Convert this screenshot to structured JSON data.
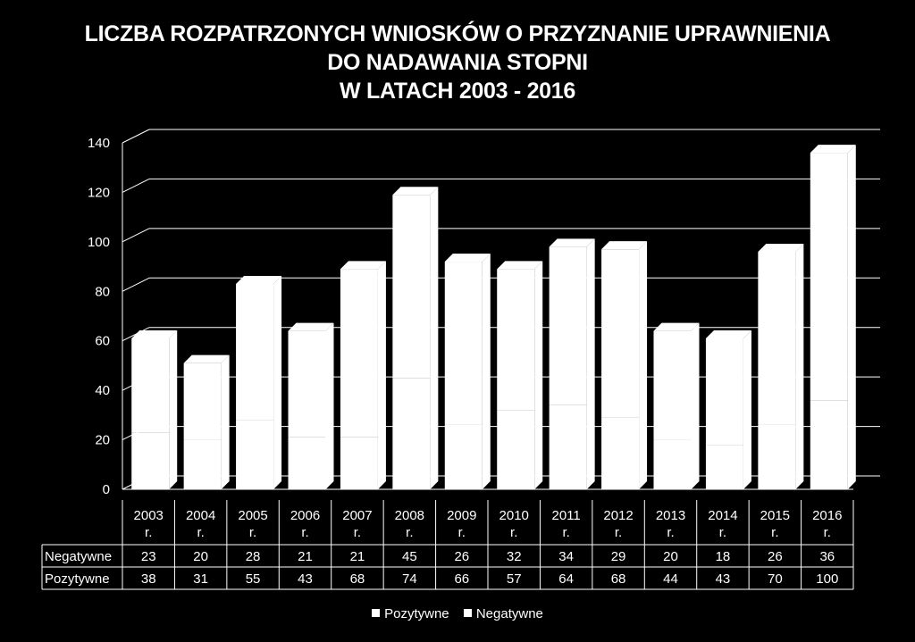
{
  "title_lines": [
    "LICZBA ROZPATRZONYCH WNIOSKÓW O PRZYZNANIE UPRAWNIENIA",
    "DO NADAWANIA STOPNI",
    "W LATACH 2003 - 2016"
  ],
  "chart_data": {
    "type": "bar",
    "stacked": true,
    "title": "LICZBA ROZPATRZONYCH WNIOSKÓW O PRZYZNANIE UPRAWNIENIA DO NADAWANIA STOPNI W LATACH 2003 - 2016",
    "categories": [
      "2003 r.",
      "2004 r.",
      "2005 r.",
      "2006 r.",
      "2007 r.",
      "2008 r.",
      "2009 r.",
      "2010 r.",
      "2011 r.",
      "2012 r.",
      "2013 r.",
      "2014 r.",
      "2015 r.",
      "2016 r."
    ],
    "series": [
      {
        "name": "Negatywne",
        "values": [
          23,
          20,
          28,
          21,
          21,
          45,
          26,
          32,
          34,
          29,
          20,
          18,
          26,
          36
        ],
        "color": "#ffffff"
      },
      {
        "name": "Pozytywne",
        "values": [
          38,
          31,
          55,
          43,
          68,
          74,
          66,
          57,
          64,
          68,
          44,
          43,
          70,
          100
        ],
        "color": "#ffffff"
      }
    ],
    "legend_order": [
      "Pozytywne",
      "Negatywne"
    ],
    "ylim": [
      0,
      140
    ],
    "yticks": [
      0,
      20,
      40,
      60,
      80,
      100,
      120,
      140
    ],
    "xlabel": "",
    "ylabel": "",
    "grid": true,
    "data_table": true,
    "legend_position": "bottom",
    "background": "#000000"
  }
}
